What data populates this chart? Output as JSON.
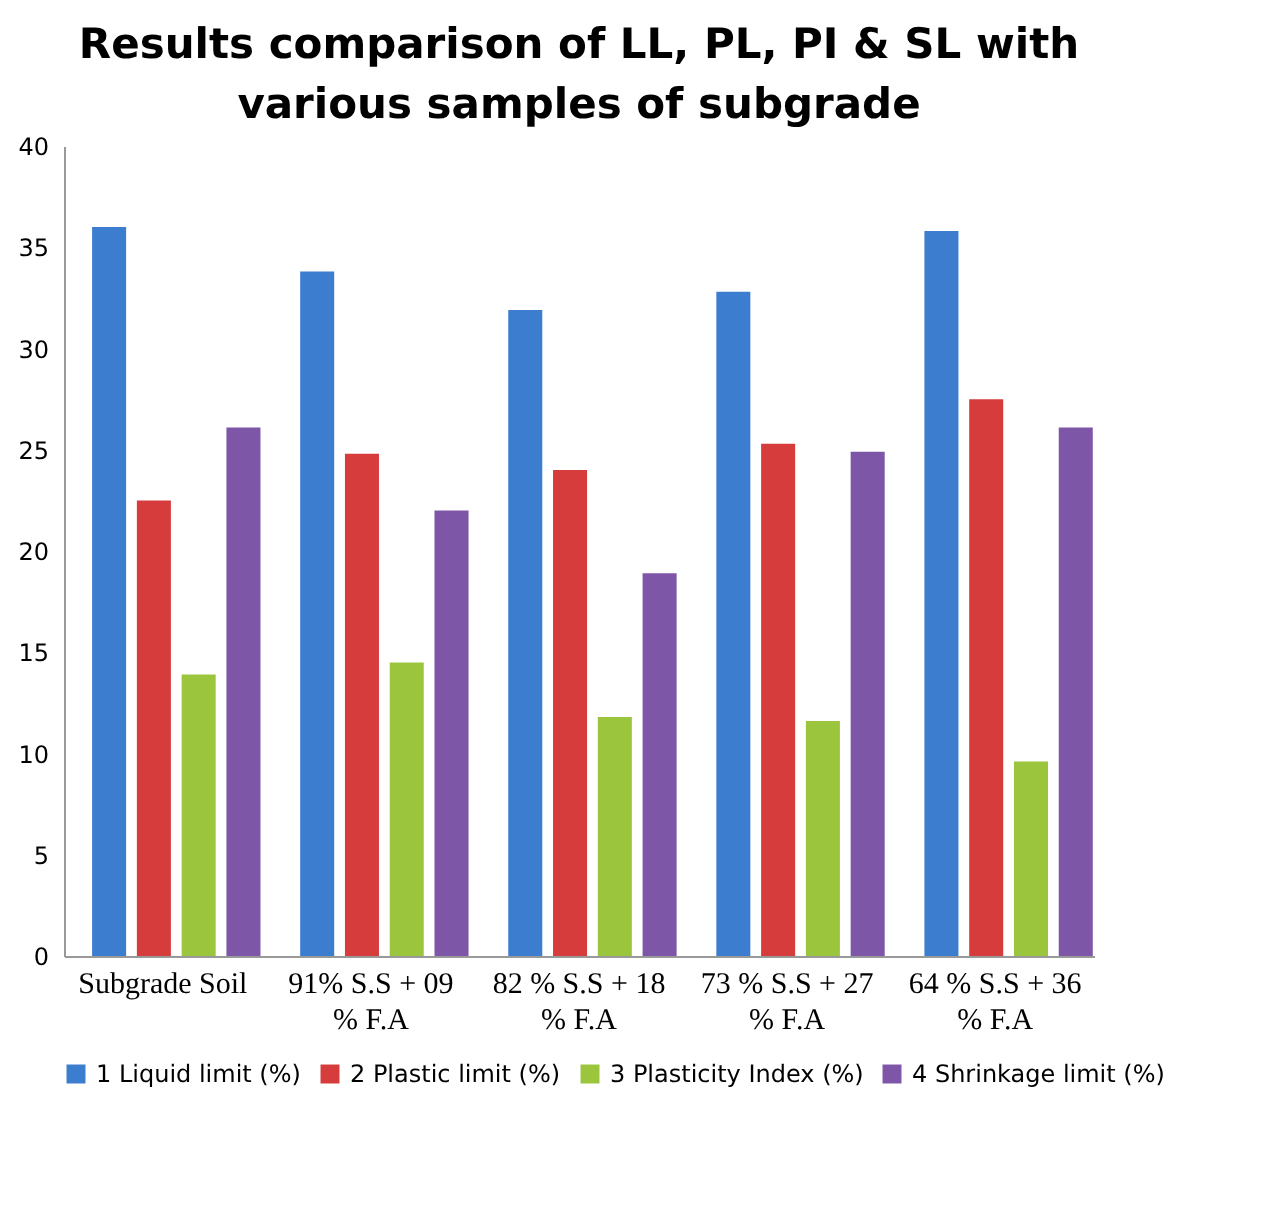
{
  "chart_data": {
    "type": "bar",
    "title": "Results comparison of LL, PL, PI & SL with various samples of subgrade",
    "categories": [
      "Subgrade Soil",
      "91% S.S + 09 % F.A",
      "82 % S.S + 18 % F.A",
      "73 % S.S + 27 % F.A",
      "64 % S.S + 36 % F.A"
    ],
    "series": [
      {
        "name": "1 Liquid limit (%)",
        "color": "#3c7dd0",
        "values": [
          36.0,
          33.8,
          31.9,
          32.8,
          35.8
        ]
      },
      {
        "name": "2 Plastic limit (%)",
        "color": "#d63c3c",
        "values": [
          22.5,
          24.8,
          24.0,
          25.3,
          27.5
        ]
      },
      {
        "name": "3 Plasticity Index (%)",
        "color": "#9bc53d",
        "values": [
          13.9,
          14.5,
          11.8,
          11.6,
          9.6
        ]
      },
      {
        "name": "4 Shrinkage limit (%)",
        "color": "#7e56a8",
        "values": [
          26.1,
          22.0,
          18.9,
          24.9,
          26.1
        ]
      }
    ],
    "ylim": [
      0,
      40
    ],
    "yticks": [
      0,
      5,
      10,
      15,
      20,
      25,
      30,
      35,
      40
    ],
    "grid": false,
    "legend": "bottom"
  }
}
